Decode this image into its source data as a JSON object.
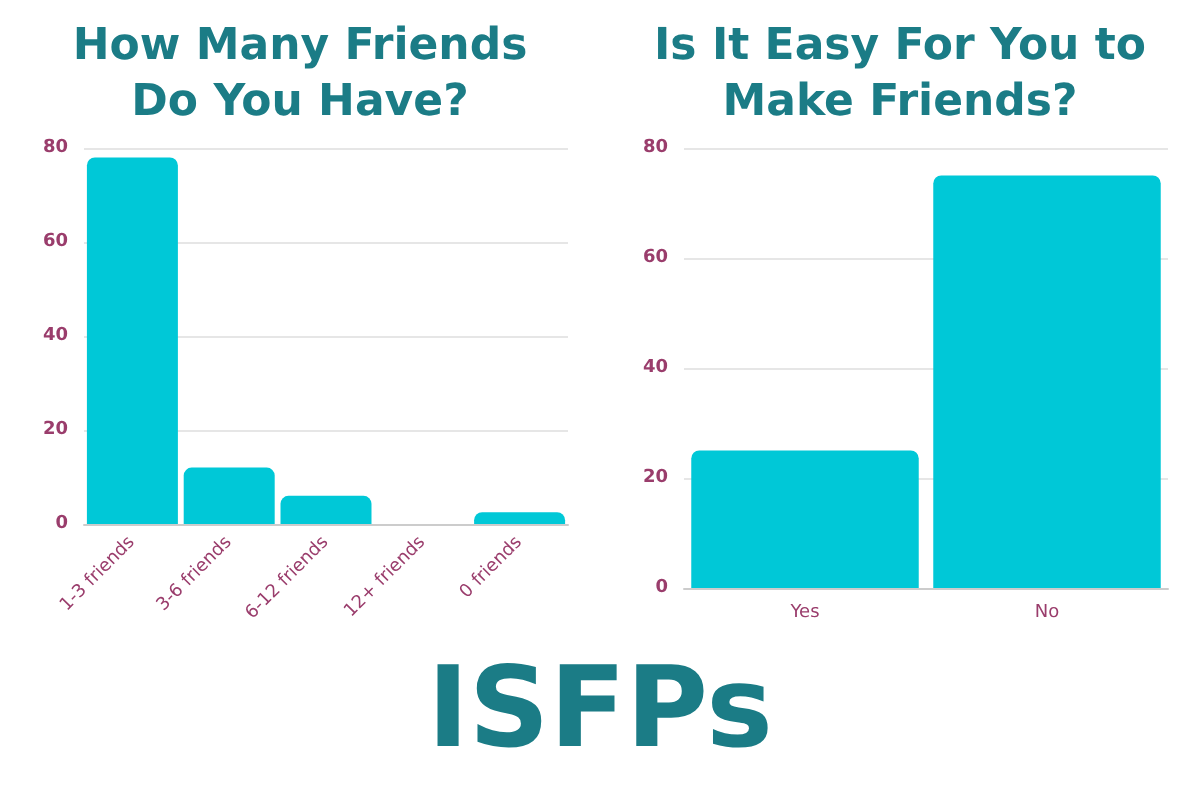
{
  "chart_data": [
    {
      "type": "bar",
      "title": "How Many Friends\nDo You Have?",
      "categories": [
        "1-3 friends",
        "3-6 friends",
        "6-12 friends",
        "12+ friends",
        "0 friends"
      ],
      "values": [
        78,
        12,
        6,
        0,
        2.5
      ],
      "color": "#00c8d7",
      "ylim": [
        0,
        80
      ],
      "yticks": [
        0,
        20,
        40,
        60,
        80
      ],
      "grid": "y",
      "annotations": [
        "ISFPs"
      ]
    },
    {
      "type": "bar",
      "title": "Is It Easy For You to\nMake Friends?",
      "categories": [
        "Yes",
        "No"
      ],
      "values": [
        25,
        75
      ],
      "color": "#00c8d7",
      "ylim": [
        0,
        80
      ],
      "yticks": [
        0,
        20,
        40,
        60,
        80
      ],
      "grid": "y"
    }
  ]
}
